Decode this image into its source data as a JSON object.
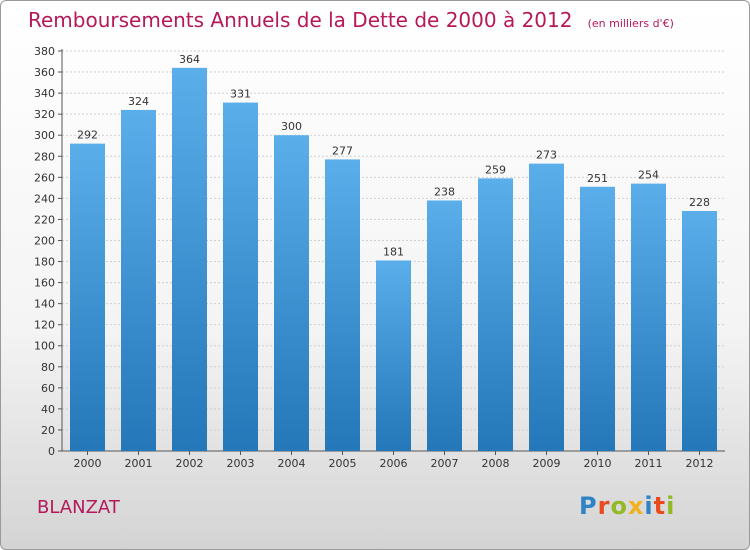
{
  "header": {
    "title": "Remboursements Annuels de la Dette de 2000 à 2012",
    "subtitle": "(en milliers d'€)"
  },
  "footer": {
    "commune": "BLANZAT",
    "brand": [
      "P",
      "r",
      "o",
      "x",
      "i",
      "t",
      "i"
    ]
  },
  "colors": {
    "accent": "#b5195a",
    "bar_top": "#5aaeea",
    "bar_bottom": "#2477b8",
    "grid": "#d0d0d0"
  },
  "chart_data": {
    "type": "bar",
    "title": "Remboursements Annuels de la Dette de 2000 à 2012",
    "subtitle": "(en milliers d'€)",
    "categories": [
      "2000",
      "2001",
      "2002",
      "2003",
      "2004",
      "2005",
      "2006",
      "2007",
      "2008",
      "2009",
      "2010",
      "2011",
      "2012"
    ],
    "values": [
      292,
      324,
      364,
      331,
      300,
      277,
      181,
      238,
      259,
      273,
      251,
      254,
      228
    ],
    "ylim": [
      0,
      380
    ],
    "yticks": [
      0,
      20,
      40,
      60,
      80,
      100,
      120,
      140,
      160,
      180,
      200,
      220,
      240,
      260,
      280,
      300,
      320,
      340,
      360,
      380
    ],
    "grid": true
  }
}
